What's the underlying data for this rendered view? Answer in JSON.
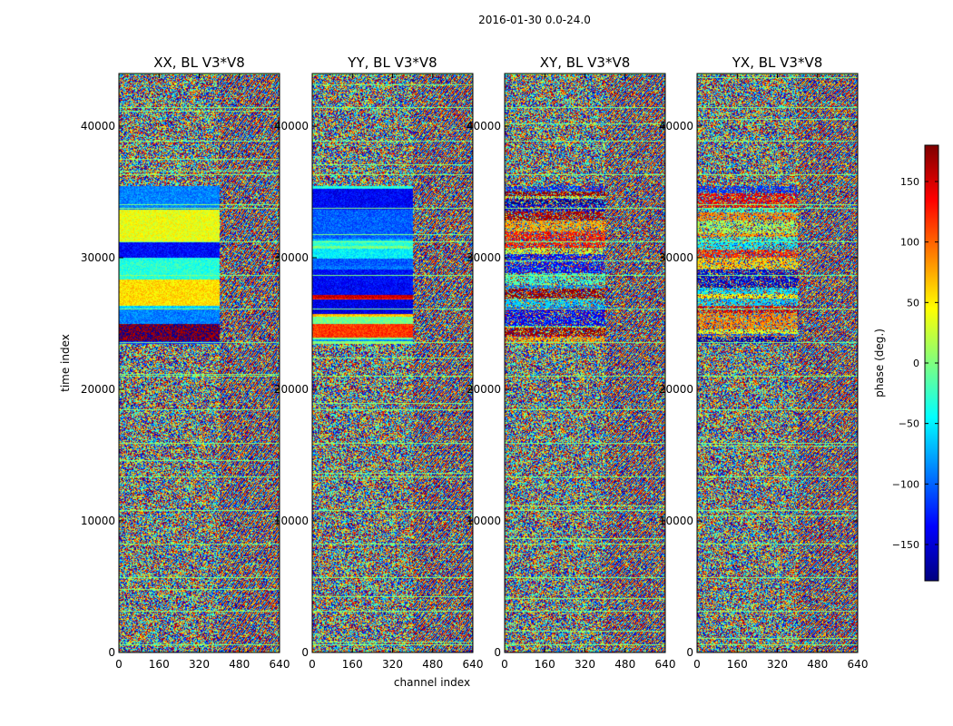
{
  "figure": {
    "suptitle": "2016-01-30 0.0-24.0"
  },
  "chart_data": {
    "type": "heatmap",
    "description_kind": "visibility phase waterfall",
    "shared": {
      "xlabel": "channel index",
      "ylabel": "time index",
      "xlim": [
        0,
        640
      ],
      "ylim": [
        0,
        44000
      ],
      "xticks": [
        0,
        160,
        320,
        480,
        640
      ],
      "xtick_labels": [
        "0",
        "160",
        "320",
        "480",
        "640"
      ],
      "yticks": [
        0,
        10000,
        20000,
        30000,
        40000
      ],
      "ytick_labels": [
        "0",
        "10000",
        "20000",
        "30000",
        "40000"
      ]
    },
    "panels": [
      {
        "title": "XX, BL V3*V8",
        "polarization": "XX",
        "baseline": "V3*V8"
      },
      {
        "title": "YY, BL V3*V8",
        "polarization": "YY",
        "baseline": "V3*V8"
      },
      {
        "title": "XY, BL V3*V8",
        "polarization": "XY",
        "baseline": "V3*V8"
      },
      {
        "title": "YX, BL V3*V8",
        "polarization": "YX",
        "baseline": "V3*V8"
      }
    ],
    "colorbar": {
      "label": "phase (deg.)",
      "colormap": "jet",
      "range": [
        -180,
        180
      ],
      "ticks": [
        150,
        100,
        50,
        0,
        -50,
        -100,
        -150
      ],
      "tick_labels": [
        "150",
        "100",
        "50",
        "0",
        "−50",
        "−100",
        "−150"
      ]
    },
    "structure": {
      "coherent_time_band": [
        23500,
        35500
      ],
      "noisy_regions": [
        [
          0,
          23500
        ],
        [
          35500,
          44000
        ]
      ],
      "fringe_channel_start": 400
    }
  },
  "colors": {
    "jet_stops": [
      "#00007f",
      "#0000ff",
      "#007fff",
      "#00ffff",
      "#7fff7f",
      "#ffff00",
      "#ff7f00",
      "#ff0000",
      "#7f0000"
    ]
  }
}
